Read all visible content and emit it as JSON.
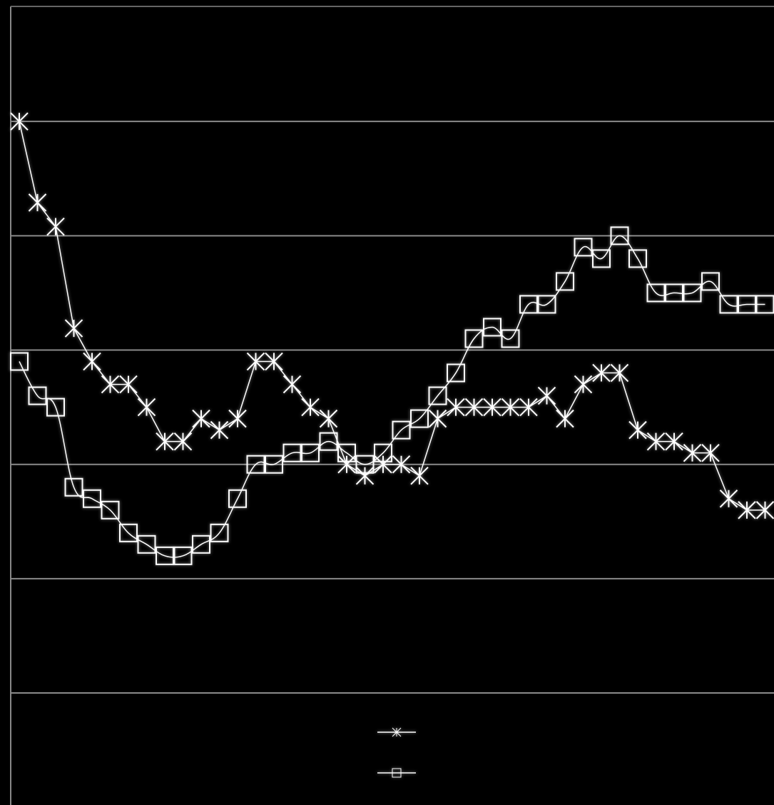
{
  "chart_data": {
    "type": "line",
    "categories": [
      null,
      null,
      null,
      null,
      null,
      null,
      null,
      null,
      null,
      null,
      null,
      null,
      null,
      null,
      null,
      null,
      null,
      null,
      null,
      null,
      null,
      null,
      null,
      null,
      null,
      null,
      null,
      null,
      null,
      null,
      null,
      null,
      null,
      null,
      null,
      null,
      null,
      null,
      null,
      null,
      null,
      null
    ],
    "series": [
      {
        "marker": "asterisk",
        "color": "#ffffff",
        "values": [
          5.0,
          4.29,
          4.08,
          3.19,
          2.9,
          2.7,
          2.7,
          2.5,
          2.2,
          2.2,
          2.4,
          2.3,
          2.4,
          2.9,
          2.9,
          2.7,
          2.5,
          2.4,
          2.0,
          1.9,
          2.0,
          2.0,
          1.9,
          2.4,
          2.5,
          2.5,
          2.5,
          2.5,
          2.5,
          2.6,
          2.4,
          2.7,
          2.8,
          2.8,
          2.3,
          2.2,
          2.2,
          2.1,
          2.1,
          1.7,
          1.6,
          1.6
        ]
      },
      {
        "marker": "square",
        "color": "#ffffff",
        "smooth": true,
        "values": [
          2.9,
          2.6,
          2.5,
          1.8,
          1.7,
          1.6,
          1.4,
          1.3,
          1.2,
          1.2,
          1.3,
          1.4,
          1.7,
          2.0,
          2.0,
          2.1,
          2.1,
          2.2,
          2.1,
          2.0,
          2.1,
          2.3,
          2.4,
          2.6,
          2.8,
          3.1,
          3.2,
          3.1,
          3.4,
          3.4,
          3.6,
          3.9,
          3.8,
          4.0,
          3.8,
          3.5,
          3.5,
          3.5,
          3.6,
          3.4,
          3.4,
          3.4
        ]
      }
    ],
    "ylim": [
      -0.98,
      6.0
    ],
    "yticks": [
      0,
      1,
      2,
      3,
      4,
      5
    ],
    "grid": true,
    "grid_color": "#8a8a8a",
    "legend": "bottom"
  }
}
